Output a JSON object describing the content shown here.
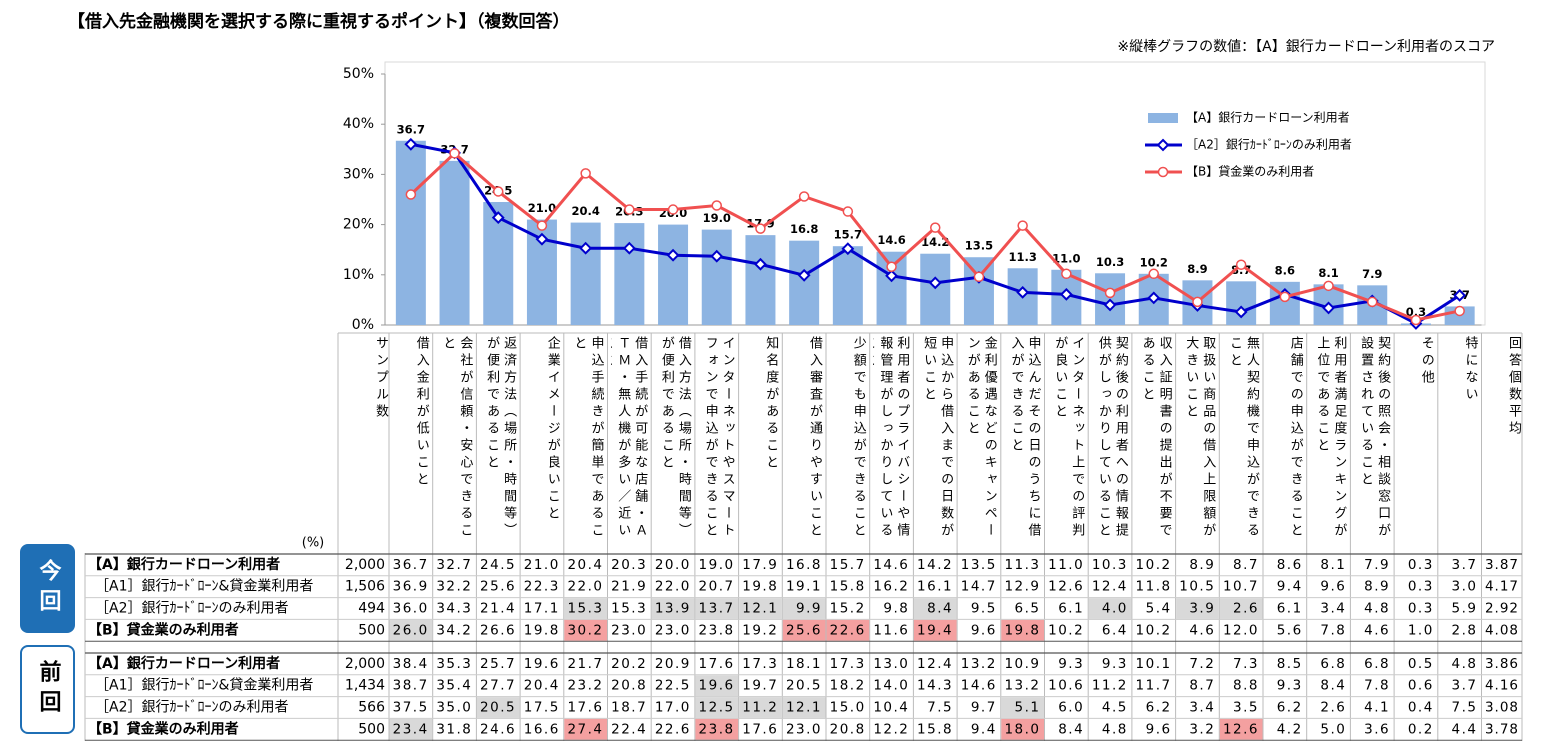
{
  "header": {
    "title": "【借入先金融機関を選択する際に重視するポイント】（複数回答）",
    "note": "※縦棒グラフの数値：【A】銀行カードローン利用者のスコア"
  },
  "chart_data": {
    "type": "bar_line",
    "categories": [
      "借入金利が低いこと",
      "会社が信頼・安心できること",
      "返済方法（場所・時間等）が便利であること",
      "企業イメージが良いこと",
      "申込手続きが簡単であること",
      "借入手続が可能な店舗・ＡＴＭ・無人機が多い／近いこと",
      "借入方法（場所・時間等）が便利であること",
      "インターネットやスマートフォンで申込ができること",
      "知名度があること",
      "借入審査が通りやすいこと",
      "少額でも申込ができること",
      "利用者のプライバシーや情報管理がしっかりしていること",
      "申込から借入までの日数が短いこと",
      "金利優遇などのキャンペーンがあること",
      "申込んだその日のうちに借入ができること",
      "インターネット上での評判が良いこと",
      "契約後の利用者への情報提供がしっかりしていること",
      "収入証明書の提出が不要であること",
      "取扱い商品の借入上限額が大きいこと",
      "無人契約機で申込ができること",
      "店舗での申込ができること",
      "利用者満足度ランキングが上位であること",
      "契約後の照会・相談窓口が設置されていること",
      "その他",
      "特にない"
    ],
    "ylim": [
      0,
      50
    ],
    "yticks": [
      {
        "value": 0,
        "label": "0%"
      },
      {
        "value": 10,
        "label": "10%"
      },
      {
        "value": 20,
        "label": "20%"
      },
      {
        "value": 30,
        "label": "30%"
      },
      {
        "value": 40,
        "label": "40%"
      },
      {
        "value": 50,
        "label": "50%"
      }
    ],
    "grid": false,
    "series": [
      {
        "name": "【A】銀行カードローン利用者",
        "type": "bar",
        "color": "#8db4e2",
        "label_color": "#558ed5",
        "values": [
          36.7,
          32.7,
          24.5,
          21.0,
          20.4,
          20.3,
          20.0,
          19.0,
          17.9,
          16.8,
          15.7,
          14.6,
          14.2,
          13.5,
          11.3,
          11.0,
          10.3,
          10.2,
          8.9,
          8.7,
          8.6,
          8.1,
          7.9,
          0.3,
          3.7
        ],
        "value_labels": [
          "36.7",
          "32.7",
          "24.5",
          "21.0",
          "20.4",
          "20.3",
          "20.0",
          "19.0",
          "17.9",
          "16.8",
          "15.7",
          "14.6",
          "14.2",
          "13.5",
          "11.3",
          "11.0",
          "10.3",
          "10.2",
          "8.9",
          "8.7",
          "8.6",
          "8.1",
          "7.9",
          "0.3",
          "3.7"
        ]
      },
      {
        "name": "［A2］銀行ｶｰﾄﾞﾛｰﾝのみ利用者",
        "type": "line",
        "marker": "diamond",
        "color": "#0000cc",
        "values": [
          36.0,
          34.3,
          21.4,
          17.1,
          15.3,
          15.3,
          13.9,
          13.7,
          12.1,
          9.9,
          15.2,
          9.8,
          8.4,
          9.5,
          6.5,
          6.1,
          4.0,
          5.4,
          3.9,
          2.6,
          6.1,
          3.4,
          4.8,
          0.3,
          5.9
        ]
      },
      {
        "name": "【B】貸金業のみ利用者",
        "type": "line",
        "marker": "circle",
        "color": "#f05050",
        "values": [
          26.0,
          34.2,
          26.6,
          19.8,
          30.2,
          23.0,
          23.0,
          23.8,
          19.2,
          25.6,
          22.6,
          11.6,
          19.4,
          9.6,
          19.8,
          10.2,
          6.4,
          10.2,
          4.6,
          12.0,
          5.6,
          7.8,
          4.6,
          1.0,
          2.8
        ]
      }
    ]
  },
  "table": {
    "unit": "(%)",
    "sample_header": "サンプル数",
    "average_header": "回答個数平均",
    "groups": [
      {
        "label": "今回",
        "rows": [
          {
            "label": "【A】銀行カードローン利用者",
            "bold": true,
            "sample": "2,000",
            "average": "3.87",
            "values": [
              "36.7",
              "32.7",
              "24.5",
              "21.0",
              "20.4",
              "20.3",
              "20.0",
              "19.0",
              "17.9",
              "16.8",
              "15.7",
              "14.6",
              "14.2",
              "13.5",
              "11.3",
              "11.0",
              "10.3",
              "10.2",
              "8.9",
              "8.7",
              "8.6",
              "8.1",
              "7.9",
              "0.3",
              "3.7"
            ]
          },
          {
            "label": "［A1］銀行ｶｰﾄﾞﾛｰﾝ&貸金業利用者",
            "bold": false,
            "sample": "1,506",
            "average": "4.17",
            "values": [
              "36.9",
              "32.2",
              "25.6",
              "22.3",
              "22.0",
              "21.9",
              "22.0",
              "20.7",
              "19.8",
              "19.1",
              "15.8",
              "16.2",
              "16.1",
              "14.7",
              "12.9",
              "12.6",
              "12.4",
              "11.8",
              "10.5",
              "10.7",
              "9.4",
              "9.6",
              "8.9",
              "0.3",
              "3.0"
            ]
          },
          {
            "label": "［A2］銀行ｶｰﾄﾞﾛｰﾝのみ利用者",
            "bold": false,
            "sample": "494",
            "average": "2.92",
            "values": [
              "36.0",
              "34.3",
              "21.4",
              "17.1",
              "15.3",
              "15.3",
              "13.9",
              "13.7",
              "12.1",
              "9.9",
              "15.2",
              "9.8",
              "8.4",
              "9.5",
              "6.5",
              "6.1",
              "4.0",
              "5.4",
              "3.9",
              "2.6",
              "6.1",
              "3.4",
              "4.8",
              "0.3",
              "5.9"
            ],
            "cell_colors": [
              null,
              null,
              null,
              null,
              "#d9d9d9",
              null,
              "#d9d9d9",
              "#d9d9d9",
              "#d9d9d9",
              "#d9d9d9",
              null,
              null,
              "#d9d9d9",
              null,
              null,
              null,
              "#d9d9d9",
              null,
              "#d9d9d9",
              "#d9d9d9",
              null,
              null,
              null,
              null,
              null
            ]
          },
          {
            "label": "【B】貸金業のみ利用者",
            "bold": true,
            "sample": "500",
            "average": "4.08",
            "values": [
              "26.0",
              "34.2",
              "26.6",
              "19.8",
              "30.2",
              "23.0",
              "23.0",
              "23.8",
              "19.2",
              "25.6",
              "22.6",
              "11.6",
              "19.4",
              "9.6",
              "19.8",
              "10.2",
              "6.4",
              "10.2",
              "4.6",
              "12.0",
              "5.6",
              "7.8",
              "4.6",
              "1.0",
              "2.8"
            ],
            "cell_colors": [
              "#d9d9d9",
              null,
              null,
              null,
              "#f4a0a0",
              null,
              null,
              null,
              null,
              "#f4a0a0",
              "#f4a0a0",
              null,
              "#f4a0a0",
              null,
              "#f4a0a0",
              null,
              null,
              null,
              null,
              null,
              null,
              null,
              null,
              null,
              null
            ]
          }
        ]
      },
      {
        "label": "前回",
        "rows": [
          {
            "label": "【A】銀行カードローン利用者",
            "bold": true,
            "sample": "2,000",
            "average": "3.86",
            "values": [
              "38.4",
              "35.3",
              "25.7",
              "19.6",
              "21.7",
              "20.2",
              "20.9",
              "17.6",
              "17.3",
              "18.1",
              "17.3",
              "13.0",
              "12.4",
              "13.2",
              "10.9",
              "9.3",
              "9.3",
              "10.1",
              "7.2",
              "7.3",
              "8.5",
              "6.8",
              "6.8",
              "0.5",
              "4.8"
            ]
          },
          {
            "label": "［A1］銀行ｶｰﾄﾞﾛｰﾝ&貸金業利用者",
            "bold": false,
            "sample": "1,434",
            "average": "4.16",
            "values": [
              "38.7",
              "35.4",
              "27.7",
              "20.4",
              "23.2",
              "20.8",
              "22.5",
              "19.6",
              "19.7",
              "20.5",
              "18.2",
              "14.0",
              "14.3",
              "14.6",
              "13.2",
              "10.6",
              "11.2",
              "11.7",
              "8.7",
              "8.8",
              "9.3",
              "8.4",
              "7.8",
              "0.6",
              "3.7"
            ],
            "cell_colors": [
              null,
              null,
              null,
              null,
              null,
              null,
              null,
              "#d9d9d9",
              null,
              null,
              null,
              null,
              null,
              null,
              null,
              null,
              null,
              null,
              null,
              null,
              null,
              null,
              null,
              null,
              null
            ]
          },
          {
            "label": "［A2］銀行ｶｰﾄﾞﾛｰﾝのみ利用者",
            "bold": false,
            "sample": "566",
            "average": "3.08",
            "values": [
              "37.5",
              "35.0",
              "20.5",
              "17.5",
              "17.6",
              "18.7",
              "17.0",
              "12.5",
              "11.2",
              "12.1",
              "15.0",
              "10.4",
              "7.5",
              "9.7",
              "5.1",
              "6.0",
              "4.5",
              "6.2",
              "3.4",
              "3.5",
              "6.2",
              "2.6",
              "4.1",
              "0.4",
              "7.5"
            ],
            "cell_colors": [
              null,
              null,
              "#d9d9d9",
              null,
              null,
              null,
              null,
              "#d9d9d9",
              "#d9d9d9",
              "#d9d9d9",
              null,
              null,
              null,
              null,
              "#d9d9d9",
              null,
              null,
              null,
              null,
              null,
              null,
              null,
              null,
              null,
              null
            ]
          },
          {
            "label": "【B】貸金業のみ利用者",
            "bold": true,
            "sample": "500",
            "average": "3.78",
            "values": [
              "23.4",
              "31.8",
              "24.6",
              "16.6",
              "27.4",
              "22.4",
              "22.6",
              "23.8",
              "17.6",
              "23.0",
              "20.8",
              "12.2",
              "15.8",
              "9.4",
              "18.0",
              "8.4",
              "4.8",
              "9.6",
              "3.2",
              "12.6",
              "4.2",
              "5.0",
              "3.6",
              "0.2",
              "4.4"
            ],
            "cell_colors": [
              "#d9d9d9",
              null,
              null,
              null,
              "#f4a0a0",
              null,
              null,
              "#f4a0a0",
              null,
              null,
              null,
              null,
              null,
              null,
              "#f4a0a0",
              null,
              null,
              null,
              null,
              "#f4a0a0",
              null,
              null,
              null,
              null,
              null
            ]
          }
        ]
      }
    ]
  }
}
